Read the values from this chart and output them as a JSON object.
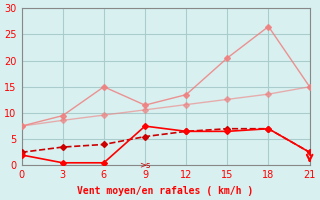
{
  "x": [
    0,
    3,
    6,
    9,
    12,
    15,
    18,
    21
  ],
  "line_pink_jagged": [
    7.5,
    9.5,
    15.0,
    11.5,
    13.5,
    20.5,
    26.5,
    15.0
  ],
  "line_pink_smooth": [
    7.5,
    8.6,
    9.6,
    10.6,
    11.6,
    12.6,
    13.6,
    15.0
  ],
  "line_dark_dashed": [
    2.5,
    3.5,
    4.0,
    5.5,
    6.5,
    7.0,
    7.0,
    2.5
  ],
  "line_bright_red": [
    2.0,
    0.5,
    0.5,
    7.5,
    6.5,
    6.5,
    7.0,
    2.5
  ],
  "color_pink_jagged": "#f08080",
  "color_pink_smooth": "#f08080",
  "color_dark_dashed": "#cc0000",
  "color_bright_red": "#ff0000",
  "xlabel": "Vent moyen/en rafales ( km/h )",
  "xlabel_color": "#ff0000",
  "background_color": "#d8f0f0",
  "grid_color": "#aacccc",
  "ylim": [
    0,
    30
  ],
  "xlim": [
    0,
    21
  ],
  "xticks": [
    0,
    3,
    6,
    9,
    12,
    15,
    18,
    21
  ],
  "yticks": [
    0,
    5,
    10,
    15,
    20,
    25,
    30
  ]
}
